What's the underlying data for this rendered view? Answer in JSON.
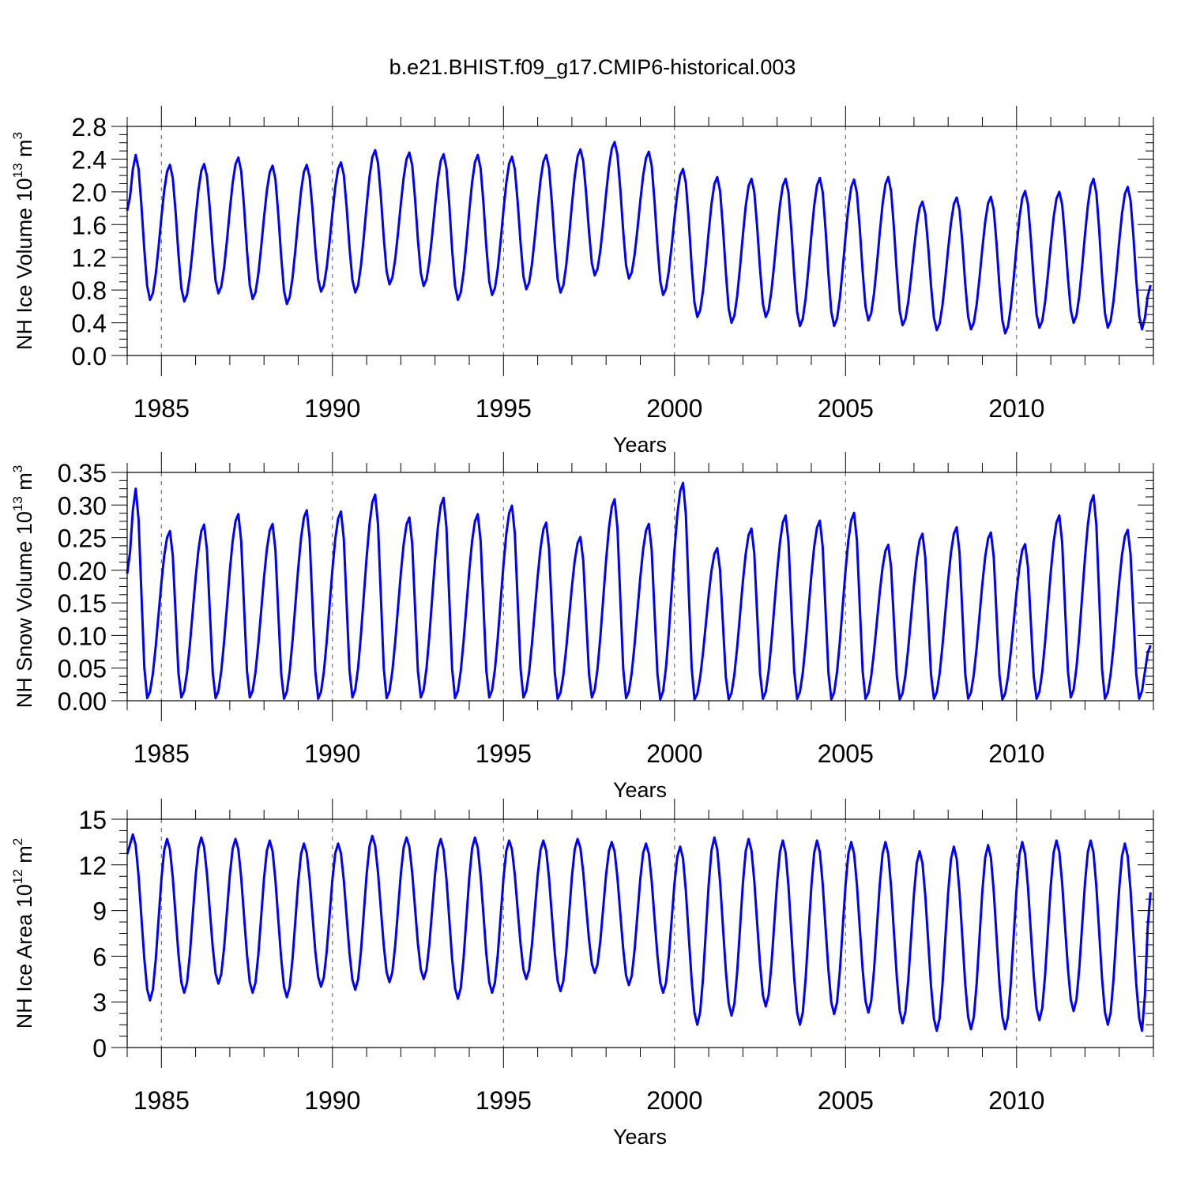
{
  "figure": {
    "title": "b.e21.BHIST.f09_g17.CMIP6-historical.003"
  },
  "colors": {
    "line": "#0000ff",
    "axes": "#000000",
    "grid": "#555555",
    "background": "#ffffff"
  },
  "chart_data": [
    {
      "type": "line",
      "id": "ice_volume",
      "title": "",
      "xlabel": "Years",
      "ylabel": "NH Ice Volume 10^13 m^3",
      "ylabel_parts": {
        "base": "NH Ice Volume 10",
        "exp1": "13",
        "mid": " m",
        "exp2": "3"
      },
      "xlim": [
        1984.0,
        2014.0
      ],
      "ylim": [
        0.0,
        2.8
      ],
      "xticks": [
        1985,
        1990,
        1995,
        2000,
        2005,
        2010
      ],
      "xtick_labels": [
        "1985",
        "1990",
        "1995",
        "2000",
        "2005",
        "2010"
      ],
      "yticks": [
        0.0,
        0.4,
        0.8,
        1.2,
        1.6,
        2.0,
        2.4,
        2.8
      ],
      "ytick_labels": [
        "0.0",
        "0.4",
        "0.8",
        "1.2",
        "1.6",
        "2.0",
        "2.4",
        "2.8"
      ],
      "grid": "dashed vertical at major x ticks",
      "series": [
        {
          "name": "NH Ice Volume",
          "annual": [
            {
              "year": 1984,
              "max": 2.45,
              "min": 0.68
            },
            {
              "year": 1985,
              "max": 2.33,
              "min": 0.66
            },
            {
              "year": 1986,
              "max": 2.34,
              "min": 0.76
            },
            {
              "year": 1987,
              "max": 2.42,
              "min": 0.69
            },
            {
              "year": 1988,
              "max": 2.32,
              "min": 0.63
            },
            {
              "year": 1989,
              "max": 2.33,
              "min": 0.78
            },
            {
              "year": 1990,
              "max": 2.36,
              "min": 0.77
            },
            {
              "year": 1991,
              "max": 2.51,
              "min": 0.87
            },
            {
              "year": 1992,
              "max": 2.48,
              "min": 0.85
            },
            {
              "year": 1993,
              "max": 2.46,
              "min": 0.68
            },
            {
              "year": 1994,
              "max": 2.45,
              "min": 0.74
            },
            {
              "year": 1995,
              "max": 2.43,
              "min": 0.81
            },
            {
              "year": 1996,
              "max": 2.45,
              "min": 0.77
            },
            {
              "year": 1997,
              "max": 2.52,
              "min": 0.98
            },
            {
              "year": 1998,
              "max": 2.61,
              "min": 0.94
            },
            {
              "year": 1999,
              "max": 2.49,
              "min": 0.74
            },
            {
              "year": 2000,
              "max": 2.28,
              "min": 0.47
            },
            {
              "year": 2001,
              "max": 2.18,
              "min": 0.4
            },
            {
              "year": 2002,
              "max": 2.16,
              "min": 0.47
            },
            {
              "year": 2003,
              "max": 2.16,
              "min": 0.36
            },
            {
              "year": 2004,
              "max": 2.17,
              "min": 0.36
            },
            {
              "year": 2005,
              "max": 2.15,
              "min": 0.43
            },
            {
              "year": 2006,
              "max": 2.18,
              "min": 0.37
            },
            {
              "year": 2007,
              "max": 1.88,
              "min": 0.31
            },
            {
              "year": 2008,
              "max": 1.93,
              "min": 0.32
            },
            {
              "year": 2009,
              "max": 1.94,
              "min": 0.27
            },
            {
              "year": 2010,
              "max": 2.01,
              "min": 0.34
            },
            {
              "year": 2011,
              "max": 2.0,
              "min": 0.4
            },
            {
              "year": 2012,
              "max": 2.16,
              "min": 0.34
            },
            {
              "year": 2013,
              "max": 2.06,
              "min": 0.32
            }
          ],
          "start_value": 1.77,
          "end_value": 0.86,
          "peak_month": 4,
          "min_month": 9
        }
      ]
    },
    {
      "type": "line",
      "id": "snow_volume",
      "title": "",
      "xlabel": "Years",
      "ylabel": "NH Snow Volume 10^13 m^3",
      "ylabel_parts": {
        "base": "NH Snow Volume 10",
        "exp1": "13",
        "mid": " m",
        "exp2": "3"
      },
      "xlim": [
        1984.0,
        2014.0
      ],
      "ylim": [
        0.0,
        0.35
      ],
      "xticks": [
        1985,
        1990,
        1995,
        2000,
        2005,
        2010
      ],
      "xtick_labels": [
        "1985",
        "1990",
        "1995",
        "2000",
        "2005",
        "2010"
      ],
      "yticks": [
        0.0,
        0.05,
        0.1,
        0.15,
        0.2,
        0.25,
        0.3,
        0.35
      ],
      "ytick_labels": [
        "0.00",
        "0.05",
        "0.10",
        "0.15",
        "0.20",
        "0.25",
        "0.30",
        "0.35"
      ],
      "grid": "dashed vertical at major x ticks",
      "series": [
        {
          "name": "NH Snow Volume",
          "annual": [
            {
              "year": 1984,
              "max": 0.325,
              "min": 0.004
            },
            {
              "year": 1985,
              "max": 0.26,
              "min": 0.005
            },
            {
              "year": 1986,
              "max": 0.27,
              "min": 0.004
            },
            {
              "year": 1987,
              "max": 0.286,
              "min": 0.005
            },
            {
              "year": 1988,
              "max": 0.271,
              "min": 0.003
            },
            {
              "year": 1989,
              "max": 0.292,
              "min": 0.003
            },
            {
              "year": 1990,
              "max": 0.29,
              "min": 0.005
            },
            {
              "year": 1991,
              "max": 0.316,
              "min": 0.004
            },
            {
              "year": 1992,
              "max": 0.281,
              "min": 0.005
            },
            {
              "year": 1993,
              "max": 0.311,
              "min": 0.004
            },
            {
              "year": 1994,
              "max": 0.286,
              "min": 0.005
            },
            {
              "year": 1995,
              "max": 0.299,
              "min": 0.005
            },
            {
              "year": 1996,
              "max": 0.273,
              "min": 0.003
            },
            {
              "year": 1997,
              "max": 0.251,
              "min": 0.005
            },
            {
              "year": 1998,
              "max": 0.309,
              "min": 0.004
            },
            {
              "year": 1999,
              "max": 0.271,
              "min": 0.002
            },
            {
              "year": 2000,
              "max": 0.334,
              "min": 0.002
            },
            {
              "year": 2001,
              "max": 0.234,
              "min": 0.002
            },
            {
              "year": 2002,
              "max": 0.264,
              "min": 0.003
            },
            {
              "year": 2003,
              "max": 0.284,
              "min": 0.003
            },
            {
              "year": 2004,
              "max": 0.276,
              "min": 0.002
            },
            {
              "year": 2005,
              "max": 0.288,
              "min": 0.003
            },
            {
              "year": 2006,
              "max": 0.239,
              "min": 0.002
            },
            {
              "year": 2007,
              "max": 0.256,
              "min": 0.003
            },
            {
              "year": 2008,
              "max": 0.266,
              "min": 0.003
            },
            {
              "year": 2009,
              "max": 0.258,
              "min": 0.002
            },
            {
              "year": 2010,
              "max": 0.24,
              "min": 0.003
            },
            {
              "year": 2011,
              "max": 0.284,
              "min": 0.005
            },
            {
              "year": 2012,
              "max": 0.315,
              "min": 0.003
            },
            {
              "year": 2013,
              "max": 0.262,
              "min": 0.003
            }
          ],
          "start_value": 0.195,
          "end_value": 0.085,
          "peak_month": 4,
          "min_month": 8
        }
      ]
    },
    {
      "type": "line",
      "id": "ice_area",
      "title": "",
      "xlabel": "Years",
      "ylabel": "NH Ice Area 10^12 m^2",
      "ylabel_parts": {
        "base": "NH Ice Area 10",
        "exp1": "12",
        "mid": " m",
        "exp2": "2"
      },
      "xlim": [
        1984.0,
        2014.0
      ],
      "ylim": [
        0,
        15
      ],
      "xticks": [
        1985,
        1990,
        1995,
        2000,
        2005,
        2010
      ],
      "xtick_labels": [
        "1985",
        "1990",
        "1995",
        "2000",
        "2005",
        "2010"
      ],
      "yticks": [
        0,
        3,
        6,
        9,
        12,
        15
      ],
      "ytick_labels": [
        "0",
        "3",
        "6",
        "9",
        "12",
        "15"
      ],
      "grid": "dashed vertical at major x ticks",
      "series": [
        {
          "name": "NH Ice Area",
          "annual": [
            {
              "year": 1984,
              "max": 14.0,
              "min": 3.1
            },
            {
              "year": 1985,
              "max": 13.7,
              "min": 3.6
            },
            {
              "year": 1986,
              "max": 13.8,
              "min": 4.2
            },
            {
              "year": 1987,
              "max": 13.7,
              "min": 3.6
            },
            {
              "year": 1988,
              "max": 13.6,
              "min": 3.3
            },
            {
              "year": 1989,
              "max": 13.4,
              "min": 4.0
            },
            {
              "year": 1990,
              "max": 13.4,
              "min": 3.8
            },
            {
              "year": 1991,
              "max": 13.9,
              "min": 4.3
            },
            {
              "year": 1992,
              "max": 13.8,
              "min": 4.5
            },
            {
              "year": 1993,
              "max": 13.7,
              "min": 3.2
            },
            {
              "year": 1994,
              "max": 13.8,
              "min": 3.6
            },
            {
              "year": 1995,
              "max": 13.6,
              "min": 4.5
            },
            {
              "year": 1996,
              "max": 13.6,
              "min": 3.7
            },
            {
              "year": 1997,
              "max": 13.7,
              "min": 4.9
            },
            {
              "year": 1998,
              "max": 13.5,
              "min": 4.1
            },
            {
              "year": 1999,
              "max": 13.4,
              "min": 3.6
            },
            {
              "year": 2000,
              "max": 13.2,
              "min": 1.5
            },
            {
              "year": 2001,
              "max": 13.8,
              "min": 2.1
            },
            {
              "year": 2002,
              "max": 13.7,
              "min": 2.7
            },
            {
              "year": 2003,
              "max": 13.6,
              "min": 1.5
            },
            {
              "year": 2004,
              "max": 13.6,
              "min": 2.2
            },
            {
              "year": 2005,
              "max": 13.5,
              "min": 2.3
            },
            {
              "year": 2006,
              "max": 13.5,
              "min": 1.6
            },
            {
              "year": 2007,
              "max": 12.9,
              "min": 1.1
            },
            {
              "year": 2008,
              "max": 13.2,
              "min": 1.2
            },
            {
              "year": 2009,
              "max": 13.3,
              "min": 1.2
            },
            {
              "year": 2010,
              "max": 13.5,
              "min": 1.8
            },
            {
              "year": 2011,
              "max": 13.6,
              "min": 2.4
            },
            {
              "year": 2012,
              "max": 13.6,
              "min": 1.5
            },
            {
              "year": 2013,
              "max": 13.4,
              "min": 1.1
            }
          ],
          "start_value": 12.7,
          "end_value": 10.2,
          "peak_month": 3,
          "min_month": 9
        }
      ]
    }
  ]
}
